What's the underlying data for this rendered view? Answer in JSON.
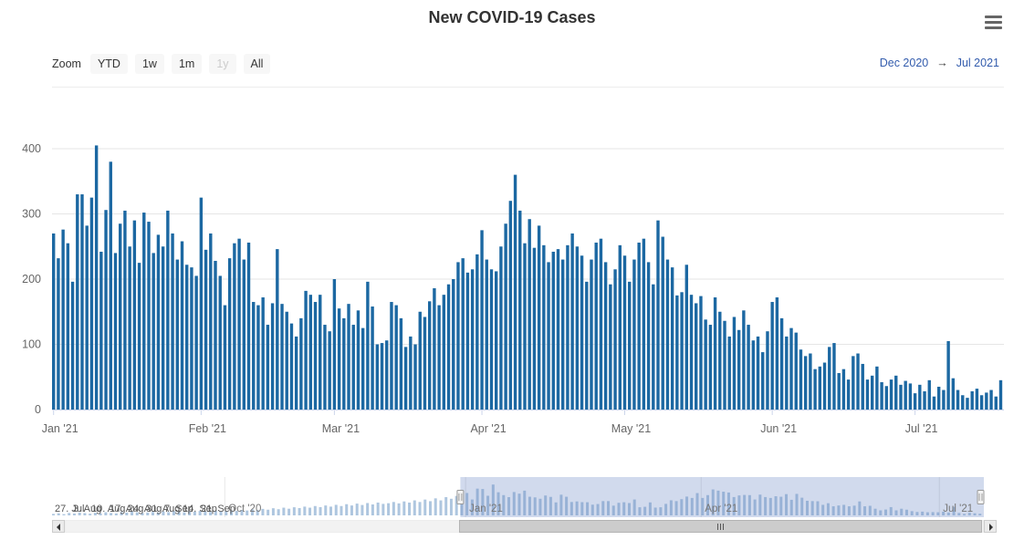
{
  "title": "New COVID-19 Cases",
  "icons": {
    "menu": "hamburger-icon",
    "scroll_left": "left-arrow",
    "scroll_right": "right-arrow"
  },
  "range_selector": {
    "zoom_label": "Zoom",
    "buttons": [
      {
        "label": "YTD",
        "state": "normal"
      },
      {
        "label": "1w",
        "state": "normal"
      },
      {
        "label": "1m",
        "state": "normal"
      },
      {
        "label": "1y",
        "state": "disabled"
      },
      {
        "label": "All",
        "state": "normal"
      }
    ],
    "from": "Dec 2020",
    "arrow": "→",
    "to": "Jul 2021"
  },
  "colors": {
    "bar": "#1c68a2",
    "navigator_series": "#aec6df",
    "navigator_mask": "rgba(102,133,194,0.3)",
    "link": "#335cad",
    "grid": "#e6e6e6",
    "axis_line": "#ccd6eb",
    "axis_label": "#666666"
  },
  "chart_data": {
    "type": "bar",
    "title": "New COVID-19 Cases",
    "xlabel": "",
    "ylabel": "",
    "x_start_date": "2021-01-01",
    "x_interval": "day",
    "x_tick_labels": [
      "Jan '21",
      "Feb '21",
      "Mar '21",
      "Apr '21",
      "May '21",
      "Jun '21",
      "Jul '21"
    ],
    "x_tick_positions_days": [
      0,
      31,
      59,
      90,
      120,
      151,
      181
    ],
    "ylim": [
      0,
      420
    ],
    "y_ticks": [
      0,
      100,
      200,
      300,
      400
    ],
    "grid": true,
    "values": [
      270,
      232,
      276,
      255,
      196,
      330,
      330,
      282,
      325,
      405,
      242,
      306,
      380,
      240,
      285,
      305,
      250,
      290,
      225,
      302,
      288,
      240,
      268,
      250,
      305,
      270,
      230,
      258,
      222,
      218,
      205,
      325,
      245,
      270,
      228,
      205,
      160,
      232,
      255,
      262,
      230,
      256,
      165,
      160,
      172,
      130,
      163,
      246,
      162,
      150,
      132,
      112,
      140,
      182,
      176,
      165,
      176,
      130,
      120,
      200,
      155,
      140,
      162,
      130,
      152,
      125,
      196,
      158,
      100,
      102,
      106,
      165,
      160,
      140,
      96,
      112,
      100,
      150,
      142,
      166,
      186,
      160,
      176,
      192,
      200,
      226,
      232,
      210,
      215,
      238,
      275,
      230,
      215,
      212,
      250,
      285,
      320,
      360,
      305,
      255,
      292,
      248,
      282,
      252,
      226,
      242,
      246,
      230,
      252,
      270,
      250,
      236,
      196,
      230,
      256,
      262,
      226,
      192,
      215,
      252,
      236,
      196,
      230,
      256,
      262,
      226,
      192,
      290,
      265,
      230,
      218,
      175,
      180,
      222,
      176,
      163,
      174,
      138,
      130,
      172,
      150,
      136,
      112,
      142,
      122,
      152,
      130,
      106,
      112,
      88,
      120,
      165,
      172,
      140,
      112,
      125,
      118,
      92,
      82,
      86,
      62,
      66,
      72,
      96,
      102,
      56,
      62,
      46,
      82,
      86,
      70,
      46,
      52,
      66,
      42,
      36,
      46,
      52,
      38,
      44,
      40,
      25,
      38,
      28,
      45,
      20,
      35,
      30,
      105,
      48,
      30,
      22,
      18,
      28,
      32,
      22,
      26,
      30,
      20,
      45
    ]
  },
  "navigator": {
    "tick_labels": [
      "Oct '20",
      "Jan '21",
      "Apr '21",
      "Jul '21"
    ],
    "overlapping_labels": [
      "27. Jul",
      "3. Aug",
      "10. Aug",
      "17. Aug",
      "24. Aug",
      "31. Aug",
      "7. Sep",
      "14. Sep",
      "21. Sep"
    ],
    "selected_range": {
      "from": "Dec 2020",
      "to": "Jul 2021"
    },
    "values_start_date": "2020-07-27",
    "values_interval_days": 2,
    "values_2020_every_2_days": [
      18,
      25,
      15,
      30,
      22,
      35,
      28,
      20,
      32,
      26,
      38,
      30,
      24,
      40,
      34,
      45,
      38,
      30,
      35,
      42,
      36,
      48,
      40,
      52,
      44,
      38,
      50,
      45,
      55,
      48,
      42,
      58,
      50,
      55,
      62,
      54,
      68,
      60,
      75,
      65,
      80,
      70,
      88,
      76,
      95,
      82,
      100,
      90,
      108,
      95,
      115,
      102,
      122,
      108,
      130,
      115,
      138,
      122,
      145,
      128,
      152,
      135,
      158,
      142,
      150,
      165,
      148,
      172,
      158,
      185,
      165,
      195,
      175,
      210,
      185,
      225,
      205,
      240
    ]
  }
}
